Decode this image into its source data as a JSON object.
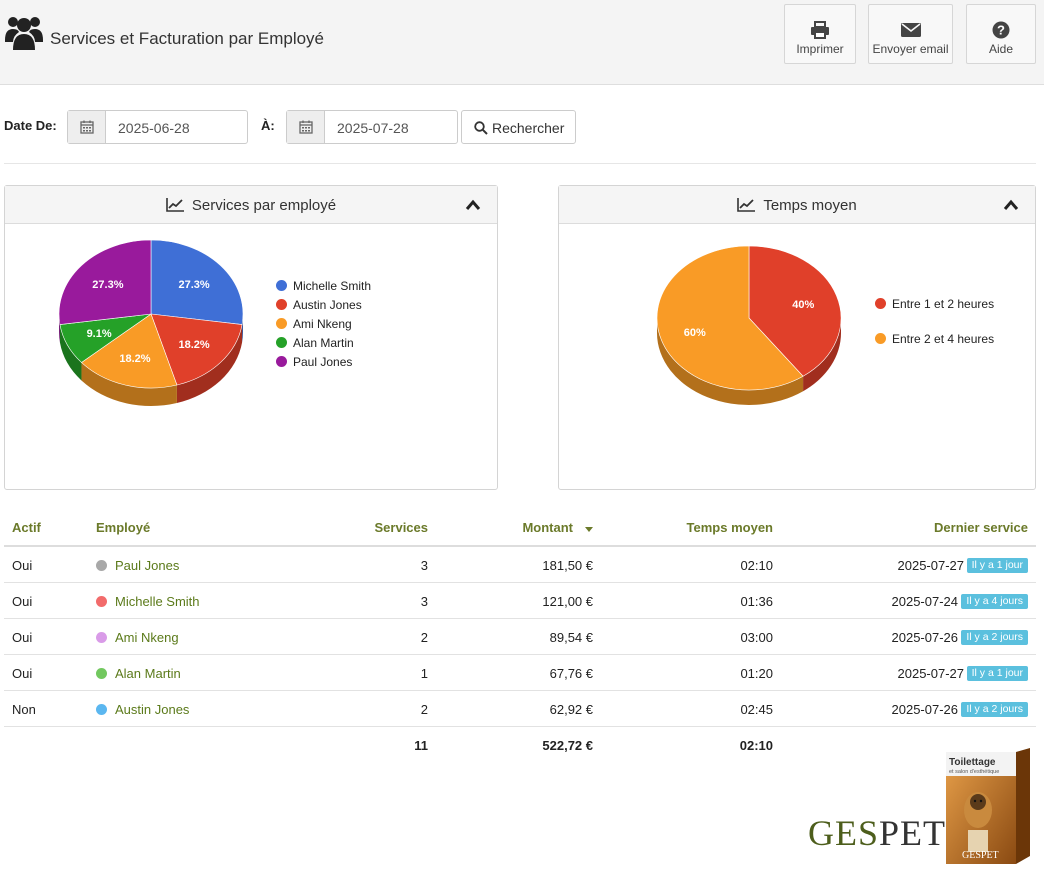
{
  "header": {
    "title": "Services et Facturation par Employé",
    "buttons": {
      "print": "Imprimer",
      "email": "Envoyer email",
      "help": "Aide"
    }
  },
  "filter": {
    "from_label": "Date De:",
    "from_value": "2025-06-28",
    "to_label": "À:",
    "to_value": "2025-07-28",
    "search_label": "Rechercher"
  },
  "chart_data": [
    {
      "type": "pie",
      "title": "Services par employé",
      "categories": [
        "Michelle Smith",
        "Austin Jones",
        "Ami Nkeng",
        "Alan Martin",
        "Paul Jones"
      ],
      "values": [
        27.3,
        18.2,
        18.2,
        9.1,
        27.3
      ],
      "labels": [
        "27.3%",
        "18.2%",
        "18.2%",
        "9.1%",
        "27.3%"
      ],
      "colors": [
        "#3f6fd6",
        "#e0402a",
        "#f99b26",
        "#25a128",
        "#991a9c"
      ],
      "legend": "right"
    },
    {
      "type": "pie",
      "title": "Temps moyen",
      "categories": [
        "Entre 1 et 2  heures",
        "Entre 2 et 4 heures"
      ],
      "values": [
        40,
        60
      ],
      "labels": [
        "40%",
        "60%"
      ],
      "colors": [
        "#e0402a",
        "#f99b26"
      ],
      "legend": "right"
    }
  ],
  "table": {
    "headers": {
      "actif": "Actif",
      "employe": "Employé",
      "services": "Services",
      "montant": "Montant",
      "temps": "Temps moyen",
      "dernier": "Dernier service"
    },
    "rows": [
      {
        "actif": "Oui",
        "employe": "Paul Jones",
        "dot_color": "#a8a8a8",
        "services": "3",
        "montant": "181,50 €",
        "temps": "02:10",
        "dernier": "2025-07-27",
        "badge": "Il y a 1 jour"
      },
      {
        "actif": "Oui",
        "employe": "Michelle Smith",
        "dot_color": "#f26b6b",
        "services": "3",
        "montant": "121,00 €",
        "temps": "01:36",
        "dernier": "2025-07-24",
        "badge": "Il y a 4 jours"
      },
      {
        "actif": "Oui",
        "employe": "Ami Nkeng",
        "dot_color": "#d99be8",
        "services": "2",
        "montant": "89,54 €",
        "temps": "03:00",
        "dernier": "2025-07-26",
        "badge": "Il y a 2 jours"
      },
      {
        "actif": "Oui",
        "employe": "Alan Martin",
        "dot_color": "#72c85f",
        "services": "1",
        "montant": "67,76 €",
        "temps": "01:20",
        "dernier": "2025-07-27",
        "badge": "Il y a 1 jour"
      },
      {
        "actif": "Non",
        "employe": "Austin Jones",
        "dot_color": "#5bb7f0",
        "services": "2",
        "montant": "62,92 €",
        "temps": "02:45",
        "dernier": "2025-07-26",
        "badge": "Il y a 2 jours"
      }
    ],
    "totals": {
      "services": "11",
      "montant": "522,72 €",
      "temps": "02:10"
    }
  },
  "brand": {
    "logo_part1": "GES",
    "logo_part2": "PET",
    "logo_color1": "#4d5e1c",
    "logo_color2": "#333333",
    "box_title": "Toilettage",
    "box_subtitle": "et salon d'esthétique",
    "box_brand": "GESPET"
  }
}
